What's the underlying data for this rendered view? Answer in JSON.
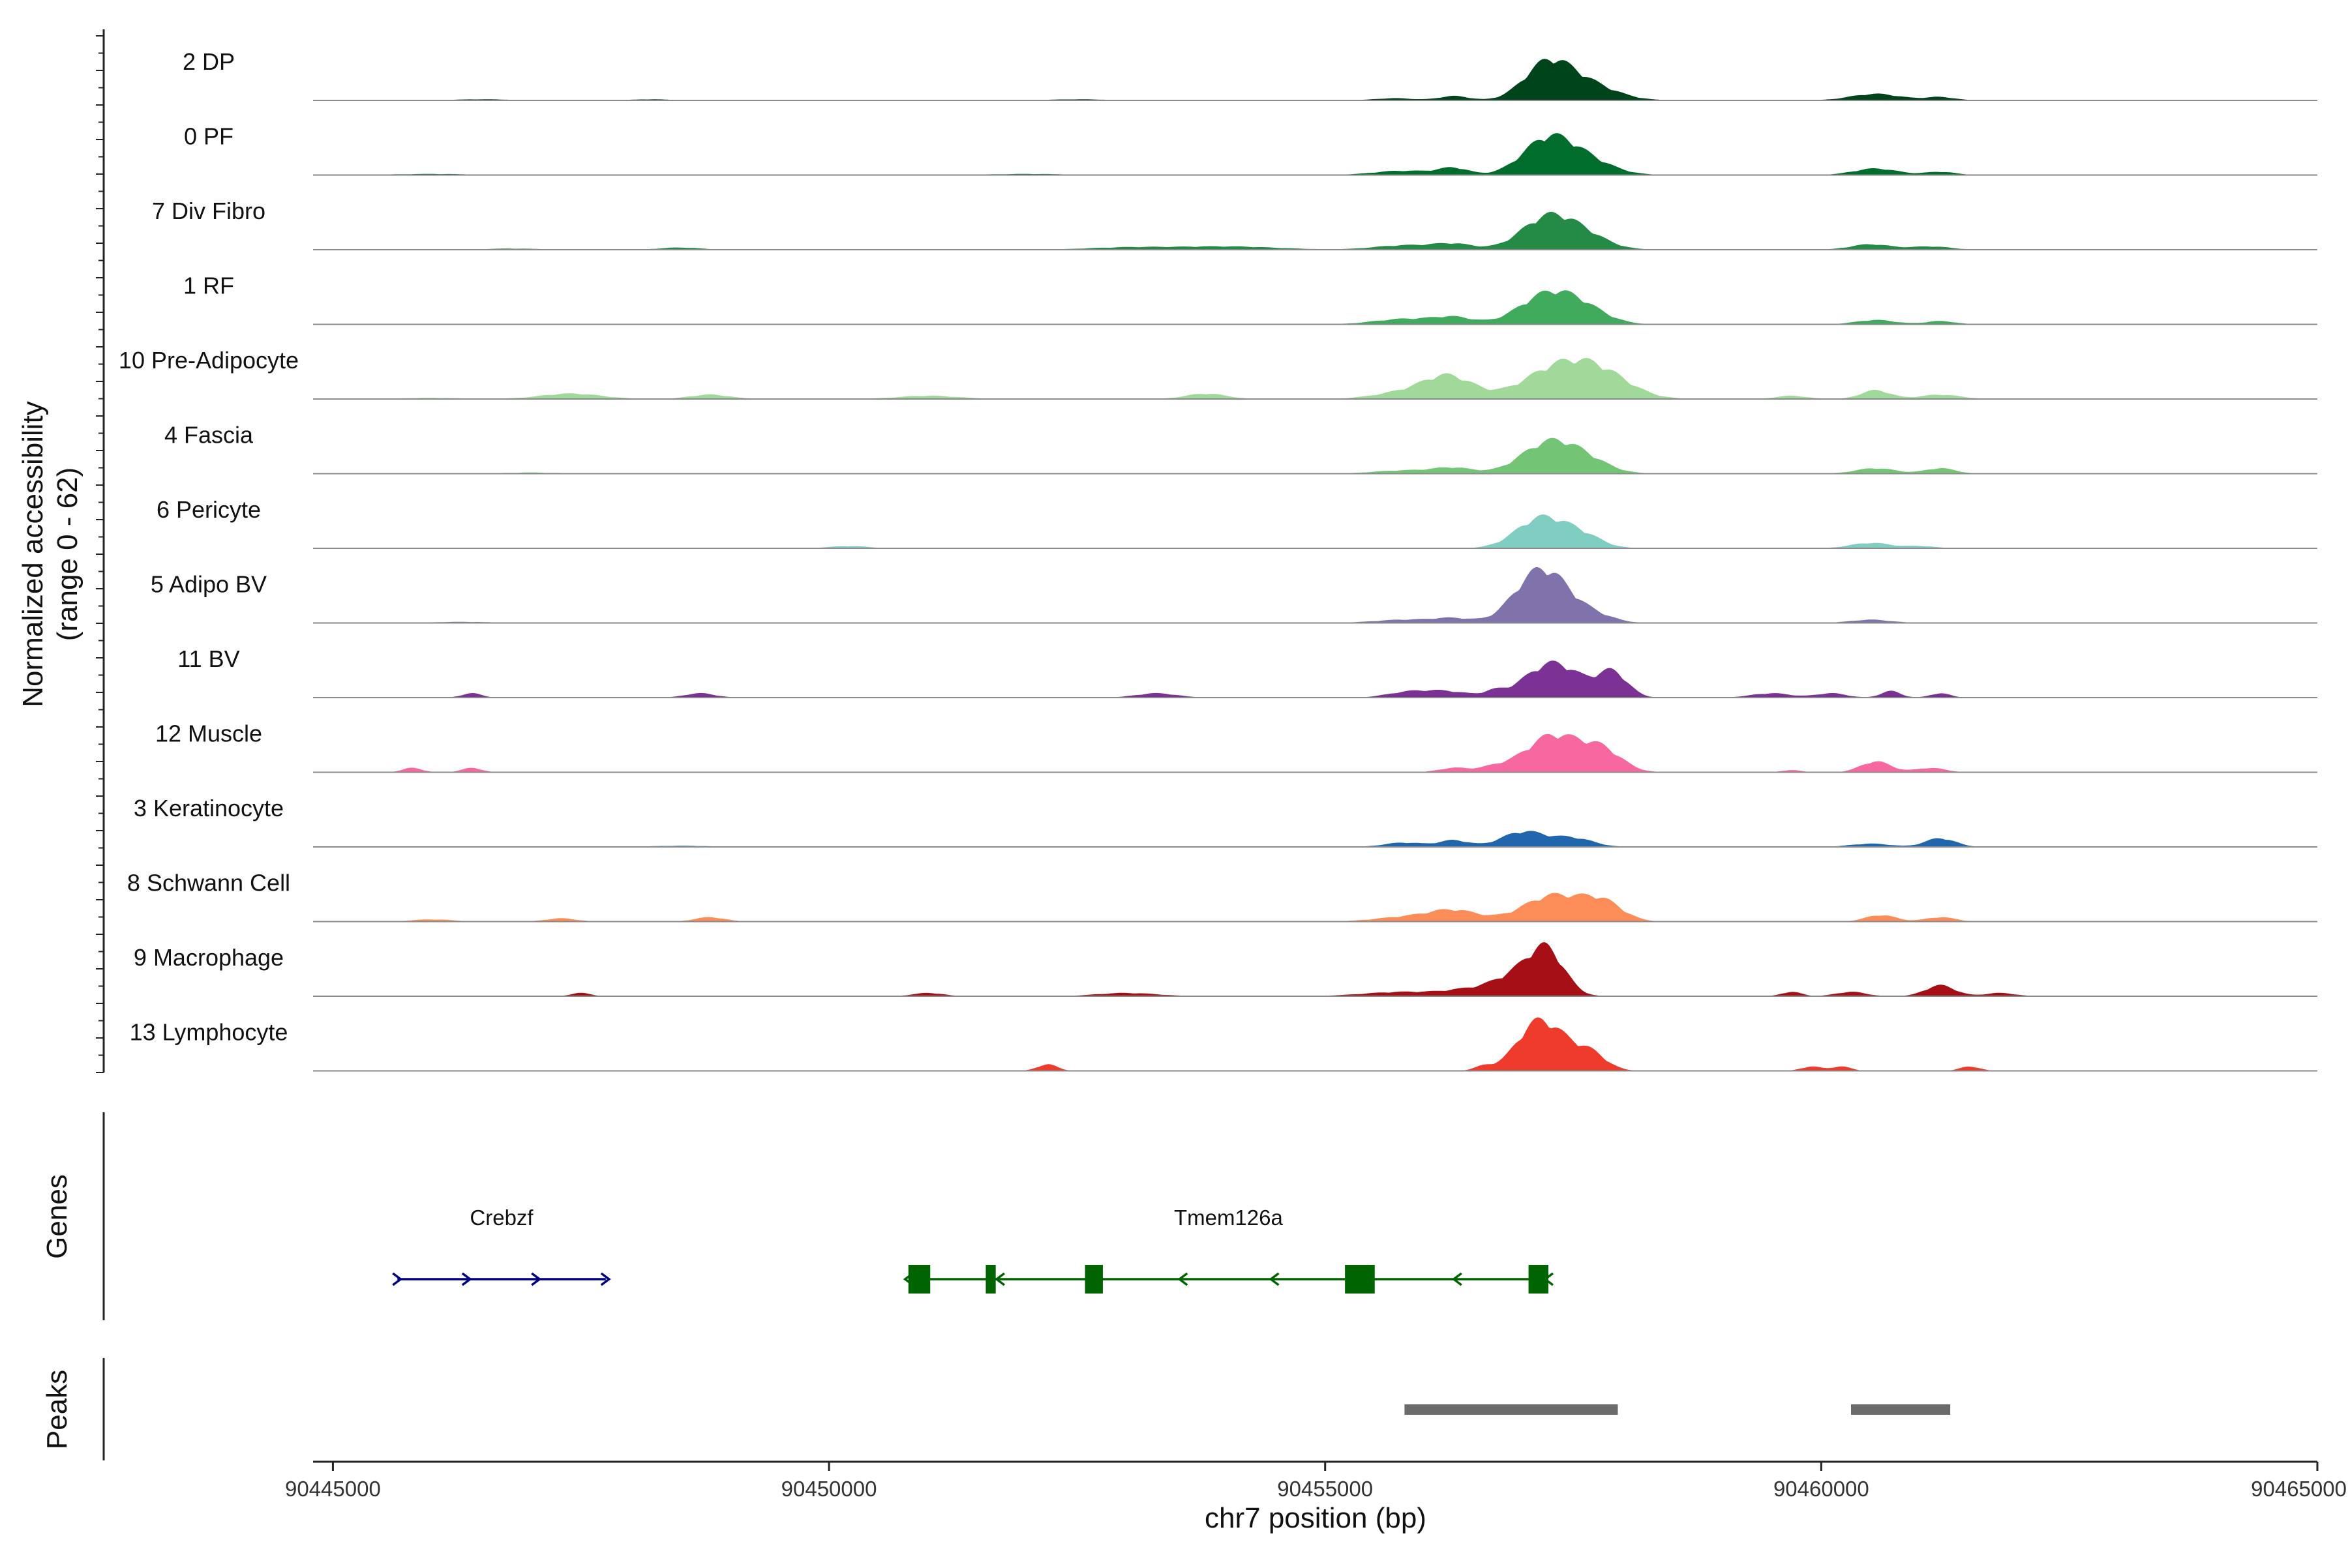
{
  "chart_data": {
    "type": "area",
    "title": "",
    "ylabel_line1": "Normalized accessibility",
    "ylabel_line2": "(range 0 - 62)",
    "yrange": [
      0,
      62
    ],
    "xlabel": "chr7 position (bp)",
    "xlim": [
      90444800,
      90465000
    ],
    "xticks": [
      90445000,
      90450000,
      90455000,
      90460000,
      90465000
    ],
    "xtick_labels": [
      "90445000",
      "90450000",
      "90455000",
      "90460000",
      "90465000"
    ],
    "genes_label": "Genes",
    "peaks_label": "Peaks",
    "series": [
      {
        "name": "2 DP",
        "color": "#00441b",
        "peaks": [
          [
            90457230,
            30,
            230
          ],
          [
            90457600,
            16,
            300
          ],
          [
            90456300,
            4,
            150
          ],
          [
            90455700,
            2,
            200
          ],
          [
            90460550,
            6,
            250
          ],
          [
            90461200,
            3,
            150
          ],
          [
            90446500,
            1,
            300
          ],
          [
            90452500,
            1,
            300
          ],
          [
            90448200,
            1,
            200
          ]
        ]
      },
      {
        "name": "0 PF",
        "color": "#006d2c",
        "peaks": [
          [
            90457230,
            30,
            250
          ],
          [
            90457600,
            14,
            280
          ],
          [
            90456300,
            6,
            150
          ],
          [
            90455800,
            4,
            300
          ],
          [
            90460550,
            6,
            220
          ],
          [
            90461200,
            3,
            150
          ],
          [
            90446000,
            1,
            400
          ],
          [
            90452000,
            1,
            400
          ]
        ]
      },
      {
        "name": "7 Div Fibro",
        "color": "#238b45",
        "peaks": [
          [
            90457230,
            28,
            260
          ],
          [
            90457600,
            12,
            250
          ],
          [
            90456300,
            5,
            200
          ],
          [
            90455800,
            4,
            300
          ],
          [
            90460500,
            5,
            200
          ],
          [
            90461100,
            3,
            200
          ],
          [
            90454000,
            3,
            500
          ],
          [
            90448500,
            2,
            200
          ],
          [
            90453000,
            2,
            400
          ],
          [
            90446800,
            1,
            300
          ]
        ]
      },
      {
        "name": "1 RF",
        "color": "#41ab5d",
        "peaks": [
          [
            90457230,
            26,
            280
          ],
          [
            90457600,
            12,
            250
          ],
          [
            90456300,
            6,
            200
          ],
          [
            90455800,
            5,
            300
          ],
          [
            90460550,
            4,
            200
          ],
          [
            90461200,
            3,
            150
          ]
        ]
      },
      {
        "name": "10 Pre-Adipocyte",
        "color": "#a1d99b",
        "peaks": [
          [
            90457350,
            28,
            350
          ],
          [
            90457800,
            18,
            300
          ],
          [
            90456250,
            20,
            250
          ],
          [
            90455800,
            6,
            300
          ],
          [
            90460550,
            8,
            150
          ],
          [
            90461200,
            4,
            200
          ],
          [
            90447400,
            5,
            300
          ],
          [
            90448800,
            4,
            200
          ],
          [
            90451000,
            3,
            300
          ],
          [
            90453800,
            5,
            200
          ],
          [
            90459700,
            3,
            150
          ],
          [
            90446000,
            1,
            300
          ]
        ]
      },
      {
        "name": "4 Fascia",
        "color": "#74c476",
        "peaks": [
          [
            90457230,
            26,
            270
          ],
          [
            90457600,
            12,
            250
          ],
          [
            90456300,
            5,
            200
          ],
          [
            90455800,
            3,
            300
          ],
          [
            90460550,
            5,
            200
          ],
          [
            90461200,
            5,
            150
          ],
          [
            90447000,
            1,
            300
          ]
        ]
      },
      {
        "name": "6 Pericyte",
        "color": "#80cdc1",
        "peaks": [
          [
            90457180,
            28,
            250
          ],
          [
            90457600,
            10,
            200
          ],
          [
            90460500,
            5,
            200
          ],
          [
            90461000,
            2,
            150
          ],
          [
            90450200,
            2,
            200
          ]
        ]
      },
      {
        "name": "5 Adipo BV",
        "color": "#8073ac",
        "peaks": [
          [
            90457100,
            38,
            230
          ],
          [
            90457350,
            20,
            200
          ],
          [
            90457700,
            8,
            200
          ],
          [
            90456300,
            4,
            200
          ],
          [
            90455800,
            3,
            300
          ],
          [
            90460500,
            3,
            200
          ],
          [
            90446300,
            1,
            300
          ]
        ]
      },
      {
        "name": "11 BV",
        "color": "#7b3294",
        "peaks": [
          [
            90457300,
            32,
            280
          ],
          [
            90457900,
            22,
            150
          ],
          [
            90456200,
            6,
            250
          ],
          [
            90455800,
            4,
            200
          ],
          [
            90456700,
            4,
            100
          ],
          [
            90446400,
            4,
            100
          ],
          [
            90448700,
            4,
            150
          ],
          [
            90453300,
            4,
            200
          ],
          [
            90459500,
            4,
            200
          ],
          [
            90460100,
            4,
            150
          ],
          [
            90460700,
            6,
            100
          ],
          [
            90461200,
            4,
            100
          ]
        ]
      },
      {
        "name": "12 Muscle",
        "color": "#f768a1",
        "peaks": [
          [
            90457300,
            34,
            280
          ],
          [
            90457800,
            18,
            200
          ],
          [
            90445800,
            4,
            100
          ],
          [
            90446400,
            4,
            100
          ],
          [
            90456300,
            4,
            150
          ],
          [
            90456700,
            4,
            150
          ],
          [
            90460550,
            10,
            150
          ],
          [
            90461100,
            4,
            150
          ],
          [
            90459700,
            2,
            100
          ]
        ]
      },
      {
        "name": "3 Keratinocyte",
        "color": "#2166ac",
        "peaks": [
          [
            90457000,
            14,
            220
          ],
          [
            90457500,
            8,
            200
          ],
          [
            90456300,
            6,
            150
          ],
          [
            90455800,
            4,
            200
          ],
          [
            90461200,
            8,
            150
          ],
          [
            90460500,
            3,
            200
          ],
          [
            90448500,
            1,
            300
          ]
        ]
      },
      {
        "name": "8 Schwann Cell",
        "color": "#fc8d59",
        "peaks": [
          [
            90457300,
            24,
            300
          ],
          [
            90457800,
            16,
            200
          ],
          [
            90456300,
            10,
            250
          ],
          [
            90455800,
            4,
            300
          ],
          [
            90460600,
            6,
            150
          ],
          [
            90461200,
            4,
            150
          ],
          [
            90448800,
            4,
            150
          ],
          [
            90447300,
            3,
            150
          ],
          [
            90446000,
            2,
            200
          ]
        ]
      },
      {
        "name": "9 Macrophage",
        "color": "#a50f15",
        "peaks": [
          [
            90457230,
            42,
            180
          ],
          [
            90456900,
            16,
            200
          ],
          [
            90456500,
            6,
            250
          ],
          [
            90455800,
            4,
            400
          ],
          [
            90461200,
            10,
            150
          ],
          [
            90459700,
            4,
            100
          ],
          [
            90460300,
            4,
            150
          ],
          [
            90447500,
            3,
            100
          ],
          [
            90451000,
            3,
            150
          ],
          [
            90453000,
            3,
            300
          ],
          [
            90461800,
            3,
            150
          ]
        ]
      },
      {
        "name": "13 Lymphocyte",
        "color": "#ef3b2c",
        "peaks": [
          [
            90457100,
            30,
            200
          ],
          [
            90457350,
            24,
            250
          ],
          [
            90457700,
            10,
            150
          ],
          [
            90452200,
            6,
            100
          ],
          [
            90456600,
            4,
            100
          ],
          [
            90459900,
            4,
            100
          ],
          [
            90460200,
            4,
            100
          ],
          [
            90461500,
            4,
            100
          ]
        ]
      }
    ],
    "genes": [
      {
        "name": "Crebzf",
        "start": 90445650,
        "end": 90447750,
        "strand": "+",
        "color": "#000080",
        "exons": []
      },
      {
        "name": "Tmem126a",
        "start": 90450800,
        "end": 90457250,
        "strand": "-",
        "color": "#006400",
        "exons": [
          [
            90450800,
            90451020
          ],
          [
            90451580,
            90451680
          ],
          [
            90452580,
            90452760
          ],
          [
            90455200,
            90455500
          ],
          [
            90457050,
            90457250
          ]
        ]
      }
    ],
    "peak_regions": [
      [
        90455800,
        90457950
      ],
      [
        90460300,
        90461300
      ]
    ]
  }
}
